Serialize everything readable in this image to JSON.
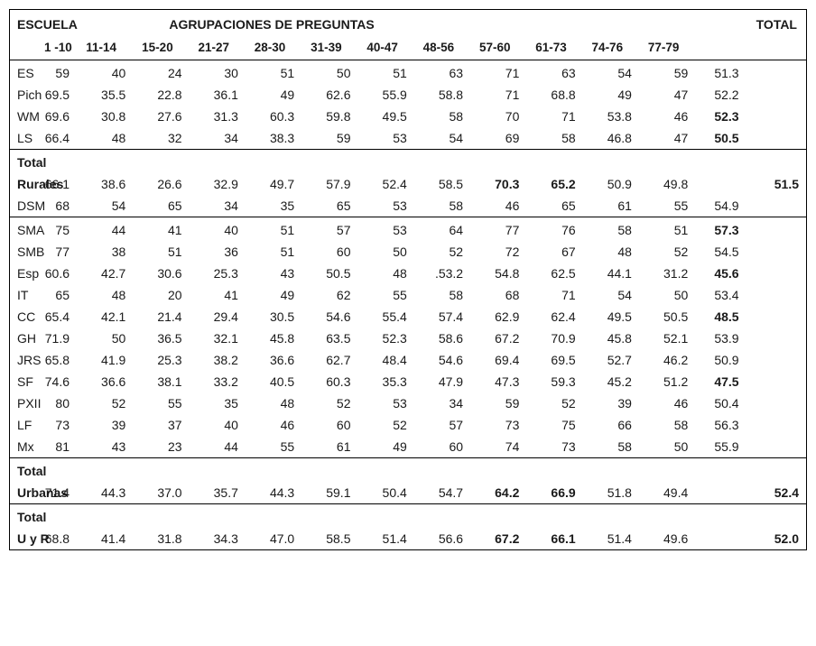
{
  "headers": {
    "escuela": "ESCUELA",
    "agrup": "AGRUPACIONES DE PREGUNTAS",
    "total": "TOTAL",
    "ranges": [
      "1 -10",
      "11-14",
      "15-20",
      "21-27",
      "28-30",
      "31-39",
      "40-47",
      "48-56",
      "57-60",
      "61-73",
      "74-76",
      "77-79"
    ]
  },
  "groups": [
    {
      "rows": [
        {
          "label": "ES",
          "v": [
            "59",
            "40",
            "24",
            "30",
            "51",
            "50",
            "51",
            "63",
            "71",
            "63",
            "54",
            "59"
          ],
          "t1": "51.3",
          "t2": ""
        },
        {
          "label": "Pich",
          "v": [
            "69.5",
            "35.5",
            "22.8",
            "36.1",
            "49",
            "62.6",
            "55.9",
            "58.8",
            "71",
            "68.8",
            "49",
            "47"
          ],
          "t1": "52.2",
          "t2": ""
        },
        {
          "label": "WM",
          "v": [
            "69.6",
            "30.8",
            "27.6",
            "31.3",
            "60.3",
            "59.8",
            "49.5",
            "58",
            "70",
            "71",
            "53.8",
            "46"
          ],
          "t1": "52.3",
          "t2": "",
          "t1_bold": true
        },
        {
          "label": "LS",
          "v": [
            "66.4",
            "48",
            "32",
            "34",
            "38.3",
            "59",
            "53",
            "54",
            "69",
            "58",
            "46.8",
            "47"
          ],
          "t1": "50.5",
          "t2": "",
          "t1_bold": true
        }
      ]
    },
    {
      "rows": [
        {
          "label": "Total",
          "label_bold": true,
          "empty": true
        },
        {
          "label": "Rurales",
          "label_bold": true,
          "all_bold": true,
          "v": [
            "66.1",
            "38.6",
            "26.6",
            "32.9",
            "49.7",
            "57.9",
            "52.4",
            "58.5",
            "70.3",
            "65.2",
            "50.9",
            "49.8"
          ],
          "bold_idx": [
            8,
            9
          ],
          "t1": "",
          "t2": "51.5",
          "t2_bold": true
        },
        {
          "label": "DSM",
          "v": [
            "68",
            "54",
            "65",
            "34",
            "35",
            "65",
            "53",
            "58",
            "46",
            "65",
            "61",
            "55"
          ],
          "t1": "54.9",
          "t2": ""
        }
      ]
    },
    {
      "rows": [
        {
          "label": "SMA",
          "v": [
            "75",
            "44",
            "41",
            "40",
            "51",
            "57",
            "53",
            "64",
            "77",
            "76",
            "58",
            "51"
          ],
          "t1": "57.3",
          "t2": "",
          "t1_bold": true
        },
        {
          "label": "SMB",
          "v": [
            "77",
            "38",
            "51",
            "36",
            "51",
            "60",
            "50",
            "52",
            "72",
            "67",
            "48",
            "52"
          ],
          "t1": "54.5",
          "t2": ""
        },
        {
          "label": "Esp",
          "v": [
            "60.6",
            "42.7",
            "30.6",
            "25.3",
            "43",
            "50.5",
            "48",
            ".53.2",
            "54.8",
            "62.5",
            "44.1",
            "31.2"
          ],
          "t1": "45.6",
          "t2": "",
          "t1_bold": true
        },
        {
          "label": "IT",
          "v": [
            "65",
            "48",
            "20",
            "41",
            "49",
            "62",
            "55",
            "58",
            "68",
            "71",
            "54",
            "50"
          ],
          "t1": "53.4",
          "t2": ""
        },
        {
          "label": "CC",
          "v": [
            "65.4",
            "42.1",
            "21.4",
            "29.4",
            "30.5",
            "54.6",
            "55.4",
            "57.4",
            "62.9",
            "62.4",
            "49.5",
            "50.5"
          ],
          "t1": "48.5",
          "t2": "",
          "t1_bold": true
        },
        {
          "label": "GH",
          "v": [
            "71.9",
            "50",
            "36.5",
            "32.1",
            "45.8",
            "63.5",
            "52.3",
            "58.6",
            "67.2",
            "70.9",
            "45.8",
            "52.1"
          ],
          "t1": "53.9",
          "t2": ""
        },
        {
          "label": "JRS",
          "v": [
            "65.8",
            "41.9",
            "25.3",
            "38.2",
            "36.6",
            "62.7",
            "48.4",
            "54.6",
            "69.4",
            "69.5",
            "52.7",
            "46.2"
          ],
          "t1": "50.9",
          "t2": ""
        },
        {
          "label": "SF",
          "v": [
            "74.6",
            "36.6",
            "38.1",
            "33.2",
            "40.5",
            "60.3",
            "35.3",
            "47.9",
            "47.3",
            "59.3",
            "45.2",
            "51.2"
          ],
          "t1": "47.5",
          "t2": "",
          "t1_bold": true
        },
        {
          "label": "PXII",
          "v": [
            "80",
            "52",
            "55",
            "35",
            "48",
            "52",
            "53",
            "34",
            "59",
            "52",
            "39",
            "46"
          ],
          "t1": "50.4",
          "t2": ""
        },
        {
          "label": "LF",
          "v": [
            "73",
            "39",
            "37",
            "40",
            "46",
            "60",
            "52",
            "57",
            "73",
            "75",
            "66",
            "58"
          ],
          "t1": "56.3",
          "t2": ""
        },
        {
          "label": "Mx",
          "v": [
            "81",
            "43",
            "23",
            "44",
            "55",
            "61",
            "49",
            "60",
            "74",
            "73",
            "58",
            "50"
          ],
          "t1": "55.9",
          "t2": ""
        }
      ]
    },
    {
      "rows": [
        {
          "label": "Total",
          "label_bold": true,
          "empty": true
        },
        {
          "label": "Urbanas",
          "label_bold": true,
          "all_bold": true,
          "v": [
            "71.4",
            "44.3",
            "37.0",
            "35.7",
            "44.3",
            "59.1",
            "50.4",
            "54.7",
            "64.2",
            "66.9",
            "51.8",
            "49.4"
          ],
          "bold_idx": [
            8,
            9
          ],
          "t1": "",
          "t2": "52.4",
          "t2_bold": true
        }
      ]
    },
    {
      "rows": [
        {
          "label": "Total",
          "label_bold": true,
          "empty": true
        },
        {
          "label": "U y R",
          "label_bold": true,
          "all_bold": true,
          "v": [
            "68.8",
            "41.4",
            "31.8",
            "34.3",
            "47.0",
            "58.5",
            "51.4",
            "56.6",
            "67.2",
            "66.1",
            "51.4",
            "49.6"
          ],
          "bold_idx": [
            8,
            9
          ],
          "t1": "",
          "t2": "52.0",
          "t2_bold": true
        }
      ]
    }
  ]
}
